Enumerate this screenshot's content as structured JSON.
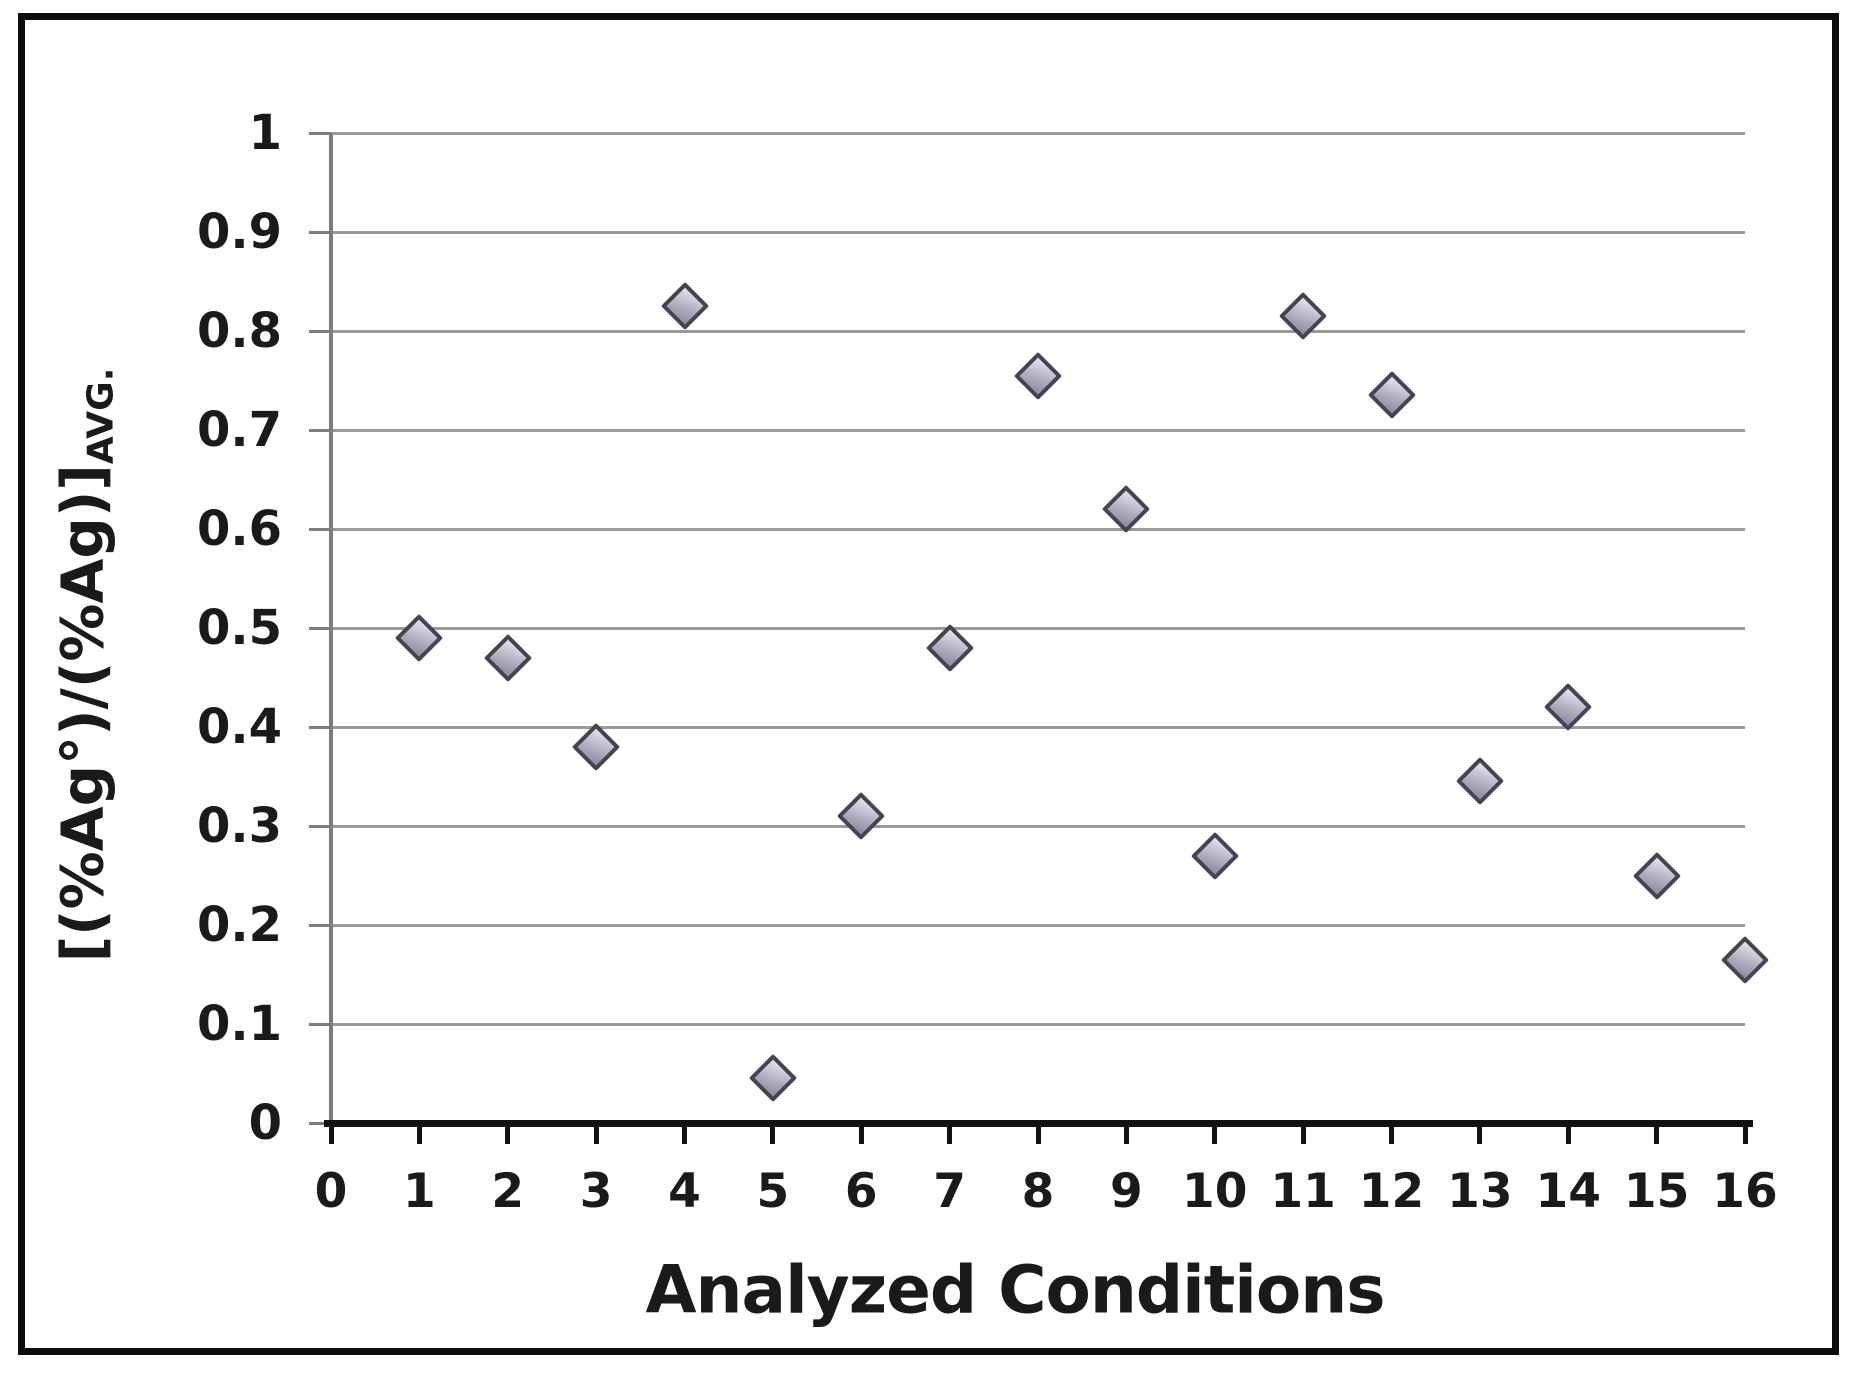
{
  "chart_data": {
    "type": "scatter",
    "title": "",
    "xlabel": "Analyzed Conditions",
    "ylabel_main": "[(%Ag°)/(%Ag)]",
    "ylabel_sub": "AVG.",
    "x": [
      1,
      2,
      3,
      4,
      5,
      6,
      7,
      8,
      9,
      10,
      11,
      12,
      13,
      14,
      15,
      16
    ],
    "y": [
      0.49,
      0.47,
      0.38,
      0.825,
      0.045,
      0.31,
      0.48,
      0.755,
      0.62,
      0.27,
      0.815,
      0.735,
      0.345,
      0.42,
      0.25,
      0.165
    ],
    "xlim": [
      0,
      16
    ],
    "ylim": [
      0,
      1
    ],
    "x_tick_labels": [
      "0",
      "1",
      "2",
      "3",
      "4",
      "5",
      "6",
      "7",
      "8",
      "9",
      "10",
      "11",
      "12",
      "13",
      "14",
      "15",
      "16"
    ],
    "y_tick_labels": [
      "0",
      "0.1",
      "0.2",
      "0.3",
      "0.4",
      "0.5",
      "0.6",
      "0.7",
      "0.8",
      "0.9",
      "1"
    ],
    "grid": true,
    "legend": "none",
    "marker_shape": "diamond",
    "colors": {
      "marker_fill": "#b1aec1",
      "marker_fill_light": "#dcdae5",
      "marker_fill_dark": "#918ea3",
      "marker_border": "#454352",
      "gridline": "#9a9a9a",
      "y_axis": "#7d7d7d",
      "x_axis": "#111111",
      "text": "#1a1a1a",
      "frame": "#0d0d0d",
      "background": "#ffffff"
    }
  }
}
